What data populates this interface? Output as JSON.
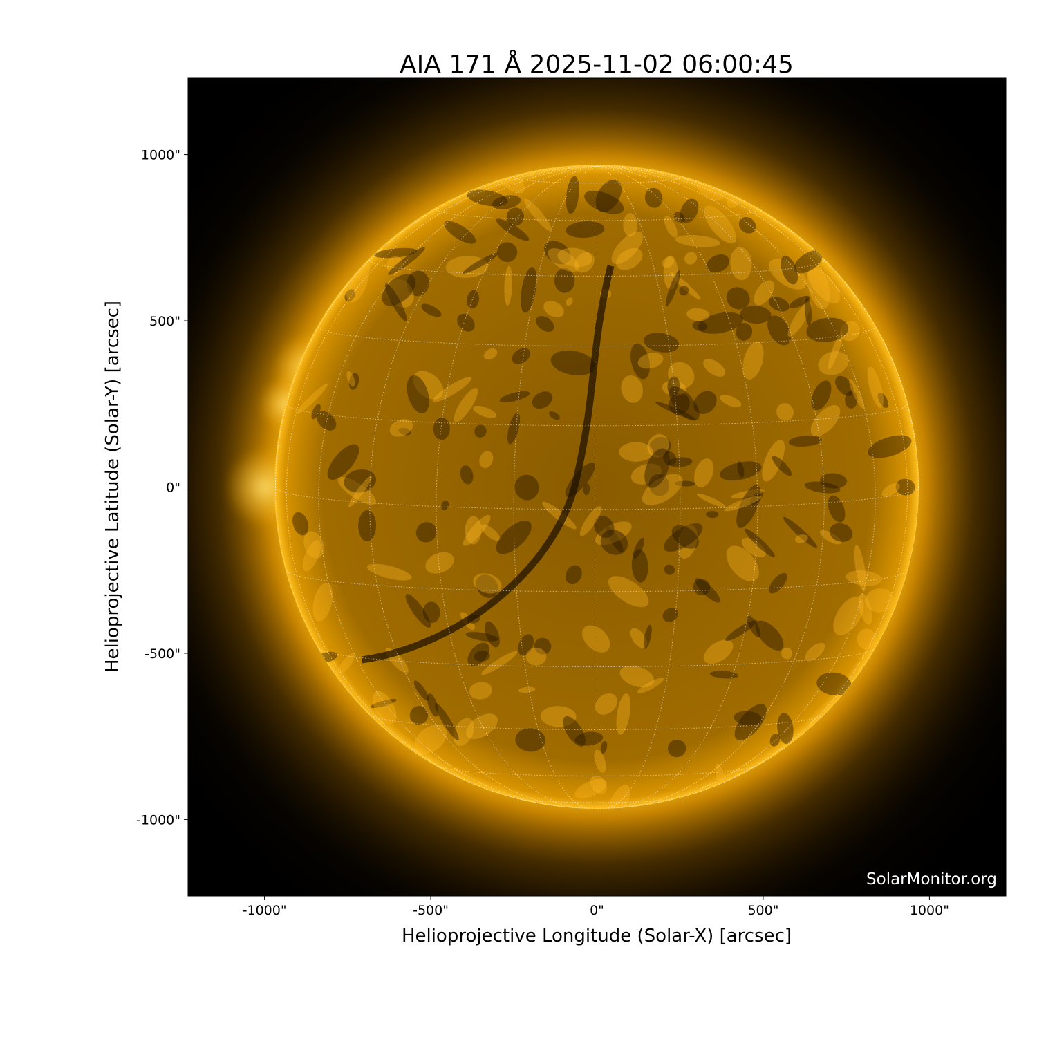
{
  "chart_data": {
    "type": "heatmap",
    "title": "AIA 171 Å 2025-11-02 06:00:45",
    "xlabel": "Helioprojective Longitude (Solar-X) [arcsec]",
    "ylabel": "Helioprojective Latitude (Solar-Y) [arcsec]",
    "xlim": [
      -1230,
      1230
    ],
    "ylim": [
      -1230,
      1230
    ],
    "x_ticks": [
      -1000,
      -500,
      0,
      500,
      1000
    ],
    "x_tick_labels": [
      "-1000\"",
      "-500\"",
      "0\"",
      "500\"",
      "1000\""
    ],
    "y_ticks": [
      1000,
      500,
      0,
      -500,
      -1000
    ],
    "y_tick_labels": [
      "1000\"",
      "500\"",
      "0\"",
      "-500\"",
      "-1000\""
    ],
    "solar_radius_arcsec": 967,
    "grid": "heliographic, 15° spacing, dotted white",
    "colormap": "sdoaia171",
    "colors": {
      "disk": "#b07800",
      "corona": "#ffb000",
      "background": "#000000"
    },
    "watermark": "SolarMonitor.org"
  }
}
